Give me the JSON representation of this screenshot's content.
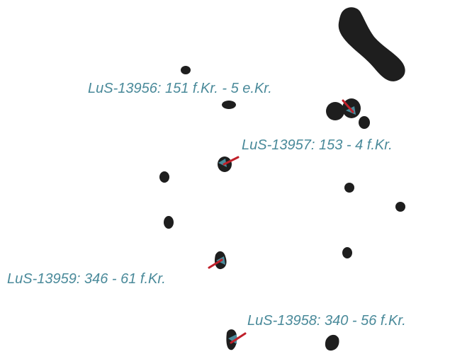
{
  "colors": {
    "feature": "#1e1e1e",
    "label": "#4a8a9a",
    "sample_marker": "#4a8a9a",
    "sample_line": "#c0202a"
  },
  "samples": [
    {
      "id": "lus-13956",
      "label": "LuS-13956: 151 f.Kr. - 5 e.Kr."
    },
    {
      "id": "lus-13957",
      "label": "LuS-13957: 153 - 4 f.Kr."
    },
    {
      "id": "lus-13959",
      "label": "LuS-13959: 346 - 61 f.Kr."
    },
    {
      "id": "lus-13958",
      "label": "LuS-13958: 340 - 56 f.Kr."
    }
  ]
}
